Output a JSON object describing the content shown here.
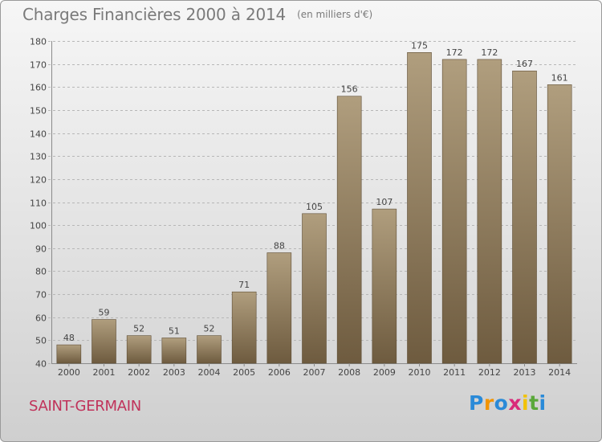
{
  "title": "Charges Financières 2000 à 2014",
  "unit": "(en milliers d'€)",
  "commune": "SAINT-GERMAIN",
  "brand": {
    "letters": [
      "P",
      "r",
      "o",
      "x",
      "i",
      "t",
      "i"
    ],
    "colors": [
      "#2a8ad8",
      "#f29400",
      "#2a8ad8",
      "#d92a7a",
      "#f2c200",
      "#5aa83a",
      "#2a8ad8"
    ]
  },
  "colors": {
    "bar_light": "#b09e7e",
    "bar_dark": "#6e5b3f",
    "grid": "#b7b7b7",
    "text": "#444444"
  },
  "chart_data": {
    "type": "bar",
    "categories": [
      "2000",
      "2001",
      "2002",
      "2003",
      "2004",
      "2005",
      "2006",
      "2007",
      "2008",
      "2009",
      "2010",
      "2011",
      "2012",
      "2013",
      "2014"
    ],
    "values": [
      48,
      59,
      52,
      51,
      52,
      71,
      88,
      105,
      156,
      107,
      175,
      172,
      172,
      167,
      161
    ],
    "ylim": [
      40,
      180
    ],
    "yticks": [
      40,
      50,
      60,
      70,
      80,
      90,
      100,
      110,
      120,
      130,
      140,
      150,
      160,
      170,
      180
    ],
    "grid": true,
    "xlabel": "",
    "ylabel": ""
  }
}
